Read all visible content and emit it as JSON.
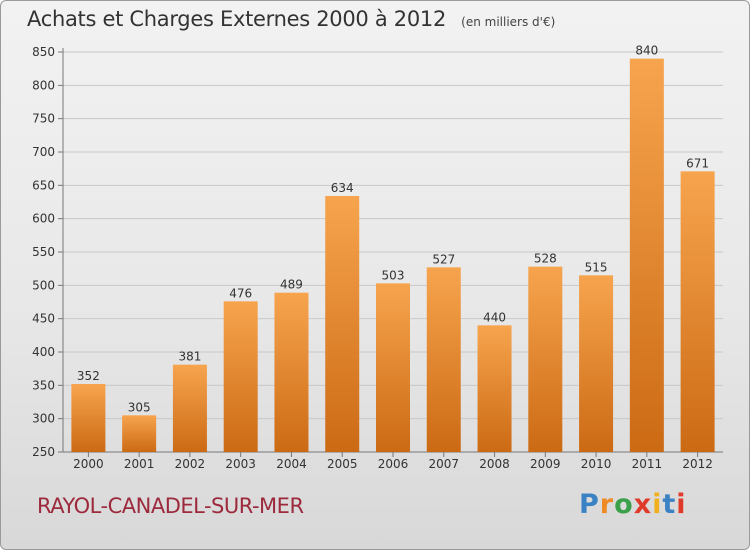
{
  "header": {
    "title": "Achats et Charges Externes 2000 à 2012",
    "unit": "(en milliers d'€)"
  },
  "footer": {
    "place": "RAYOL-CANADEL-SUR-MER",
    "logo_text": "Proxiti"
  },
  "colors": {
    "bar_top": "#f7a44e",
    "bar_bottom": "#cc6a14",
    "place_text": "#9c2a3c",
    "logo_letters": [
      "#3a82c4",
      "#f08a24",
      "#3aa04a",
      "#e03a2a",
      "#f0b020",
      "#3a82c4",
      "#e03a2a"
    ]
  },
  "chart_data": {
    "type": "bar",
    "title": "Achats et Charges Externes 2000 à 2012",
    "subtitle": "(en milliers d'€)",
    "xlabel": "",
    "ylabel": "",
    "categories": [
      "2000",
      "2001",
      "2002",
      "2003",
      "2004",
      "2005",
      "2006",
      "2007",
      "2008",
      "2009",
      "2010",
      "2011",
      "2012"
    ],
    "values": [
      352,
      305,
      381,
      476,
      489,
      634,
      503,
      527,
      440,
      528,
      515,
      840,
      671
    ],
    "ylim": [
      250,
      850
    ],
    "yticks": [
      250,
      300,
      350,
      400,
      450,
      500,
      550,
      600,
      650,
      700,
      750,
      800,
      850
    ],
    "grid": true,
    "data_labels": true
  }
}
